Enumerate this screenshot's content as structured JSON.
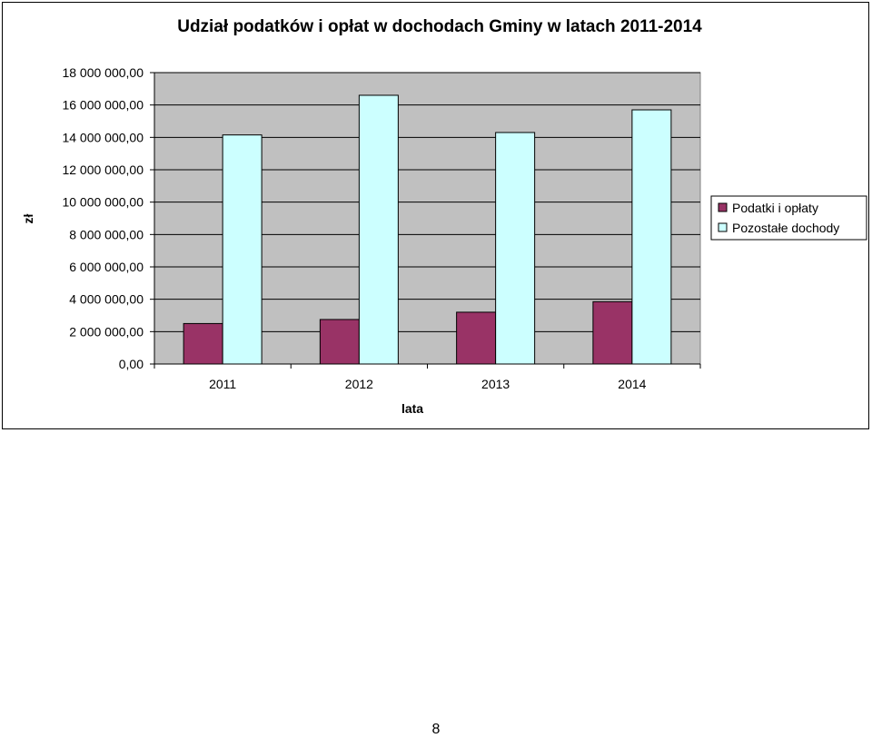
{
  "chart_data": {
    "type": "bar",
    "title": "Udział podatków i opłat w dochodach Gminy w latach 2011-2014",
    "xlabel": "lata",
    "ylabel": "zł",
    "categories": [
      "2011",
      "2012",
      "2013",
      "2014"
    ],
    "series": [
      {
        "name": "Podatki i opłaty",
        "values": [
          2500000,
          2750000,
          3200000,
          3850000
        ],
        "color": "#993366"
      },
      {
        "name": "Pozostałe dochody",
        "values": [
          14150000,
          16600000,
          14300000,
          15700000
        ],
        "color": "#ccffff"
      }
    ],
    "ylim": [
      0,
      18000000
    ],
    "yticks": [
      0,
      2000000,
      4000000,
      6000000,
      8000000,
      10000000,
      12000000,
      14000000,
      16000000,
      18000000
    ],
    "ytick_labels": [
      "0,00",
      "2 000 000,00",
      "4 000 000,00",
      "6 000 000,00",
      "8 000 000,00",
      "10 000 000,00",
      "12 000 000,00",
      "14 000 000,00",
      "16 000 000,00",
      "18 000 000,00"
    ],
    "grid": true,
    "plot_background": "#c0c0c0",
    "legend_position": "right"
  },
  "page": {
    "page_number": "8"
  }
}
